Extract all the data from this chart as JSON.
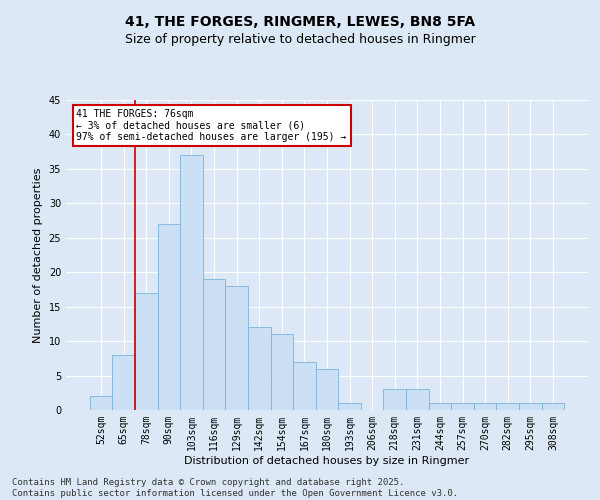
{
  "title": "41, THE FORGES, RINGMER, LEWES, BN8 5FA",
  "subtitle": "Size of property relative to detached houses in Ringmer",
  "xlabel": "Distribution of detached houses by size in Ringmer",
  "ylabel": "Number of detached properties",
  "categories": [
    "52sqm",
    "65sqm",
    "78sqm",
    "90sqm",
    "103sqm",
    "116sqm",
    "129sqm",
    "142sqm",
    "154sqm",
    "167sqm",
    "180sqm",
    "193sqm",
    "206sqm",
    "218sqm",
    "231sqm",
    "244sqm",
    "257sqm",
    "270sqm",
    "282sqm",
    "295sqm",
    "308sqm"
  ],
  "values": [
    2,
    8,
    17,
    27,
    37,
    19,
    18,
    12,
    11,
    7,
    6,
    1,
    0,
    3,
    3,
    1,
    1,
    1,
    1,
    1,
    1
  ],
  "bar_color": "#cce0f5",
  "bar_edge_color": "#7ab4d8",
  "highlight_line_color": "#cc0000",
  "annotation_text": "41 THE FORGES: 76sqm\n← 3% of detached houses are smaller (6)\n97% of semi-detached houses are larger (195) →",
  "annotation_box_color": "#ffffff",
  "annotation_box_edge_color": "#cc0000",
  "ylim": [
    0,
    45
  ],
  "yticks": [
    0,
    5,
    10,
    15,
    20,
    25,
    30,
    35,
    40,
    45
  ],
  "background_color": "#dce8f5",
  "plot_bg_color": "#dce8f5",
  "footer_text": "Contains HM Land Registry data © Crown copyright and database right 2025.\nContains public sector information licensed under the Open Government Licence v3.0.",
  "title_fontsize": 10,
  "subtitle_fontsize": 9,
  "axis_label_fontsize": 8,
  "tick_fontsize": 7,
  "footer_fontsize": 6.5,
  "annotation_fontsize": 7
}
